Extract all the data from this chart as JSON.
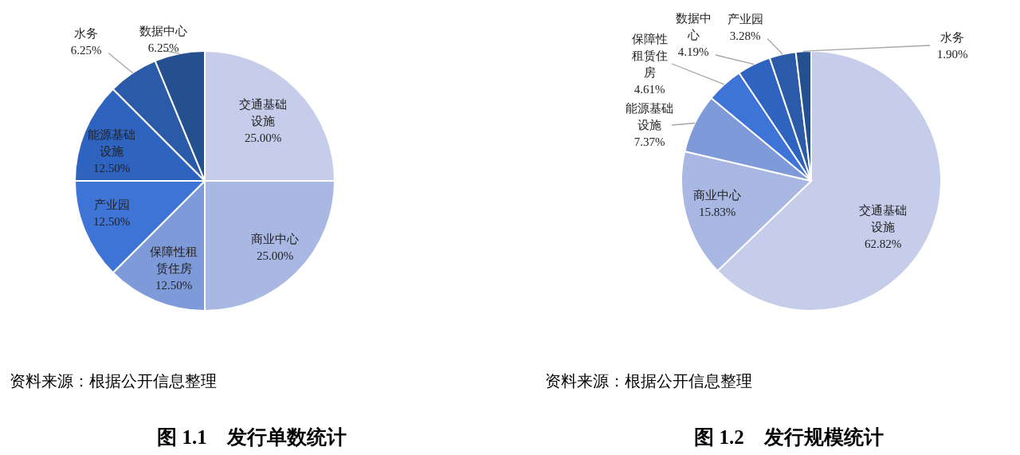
{
  "chart_data": [
    {
      "type": "pie",
      "title": "图 1.1　发行单数统计",
      "categories": [
        "交通基础设施",
        "商业中心",
        "保障性租赁住房",
        "产业园",
        "能源基础设施",
        "水务",
        "数据中心"
      ],
      "values": [
        25,
        25,
        12.5,
        12.5,
        12.5,
        6.25,
        6.25
      ],
      "value_labels": [
        "25.00%",
        "25.00%",
        "12.50%",
        "12.50%",
        "12.50%",
        "6.25%",
        "6.25%"
      ],
      "colors": [
        "#c5cdea",
        "#a9b7e3",
        "#7f9ad9",
        "#3e74d6",
        "#2f63c0",
        "#2a5aa8",
        "#25508f"
      ],
      "annotations": [
        "资料来源：根据公开信息整理"
      ]
    },
    {
      "type": "pie",
      "title": "图 1.2　发行规模统计",
      "categories": [
        "交通基础设施",
        "商业中心",
        "能源基础设施",
        "保障性租赁住房",
        "数据中心",
        "产业园",
        "水务"
      ],
      "values": [
        62.82,
        15.83,
        7.37,
        4.61,
        4.19,
        3.28,
        1.9
      ],
      "value_labels": [
        "62.82%",
        "15.83%",
        "7.37%",
        "4.61%",
        "4.19%",
        "3.28%",
        "1.90%"
      ],
      "colors": [
        "#c5cdea",
        "#a9b7e3",
        "#7f9ad9",
        "#3e74d6",
        "#2f63c0",
        "#2a5aa8",
        "#25508f"
      ],
      "annotations": [
        "资料来源：根据公开信息整理"
      ]
    }
  ]
}
